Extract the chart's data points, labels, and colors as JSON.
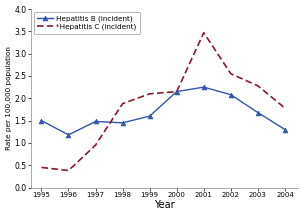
{
  "years": [
    1995,
    1996,
    1997,
    1998,
    1999,
    2000,
    2001,
    2002,
    2003,
    2004
  ],
  "hep_b": [
    1.5,
    1.18,
    1.48,
    1.45,
    1.6,
    2.15,
    2.25,
    2.08,
    1.68,
    1.3
  ],
  "hep_c": [
    0.45,
    0.38,
    0.95,
    1.88,
    2.1,
    2.15,
    3.47,
    2.55,
    2.28,
    1.78
  ],
  "hep_b_color": "#3355aa",
  "hep_c_color": "#8b1a2a",
  "ylim": [
    0.0,
    4.0
  ],
  "yticks": [
    0.0,
    0.5,
    1.0,
    1.5,
    2.0,
    2.5,
    3.0,
    3.5,
    4.0
  ],
  "xlabel": "Year",
  "ylabel": "Rate per 100,000 population",
  "legend_b": "Hepatitis B (incident)",
  "legend_c": "*Hepatitis C (incident)",
  "bg_color": "#ffffff"
}
